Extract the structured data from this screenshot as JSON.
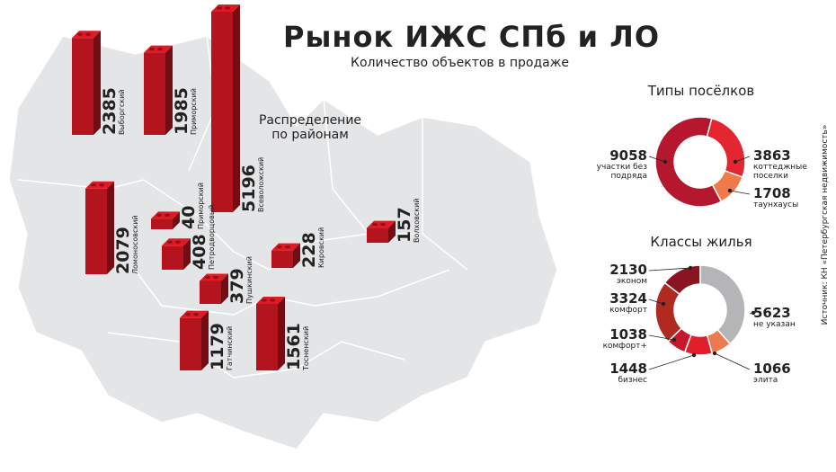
{
  "title": "Рынок ИЖС СПб и ЛО",
  "subtitle": "Количество объектов в продаже",
  "source": "Источник: КН «Петербургская недвижимость»",
  "chart_data": [
    {
      "type": "bar",
      "title": "Распределение по районам",
      "categories": [
        "Выборгский",
        "Приморский",
        "Всеволожский",
        "Ломоносовский",
        "Приморский",
        "Петродворцовый",
        "Пушкинский",
        "Кировский",
        "Волховский",
        "Гатчинский",
        "Тосненский"
      ],
      "values": [
        2385,
        1985,
        5196,
        2079,
        40,
        408,
        379,
        228,
        157,
        1179,
        1561
      ],
      "color": "#b3141d"
    },
    {
      "type": "donut",
      "title": "Типы посёлков",
      "categories": [
        "участки без подряда",
        "коттеджные поселки",
        "таунхаусы"
      ],
      "values": [
        9058,
        3863,
        1708
      ],
      "colors": [
        "#b5172e",
        "#e42630",
        "#f07a4a"
      ]
    },
    {
      "type": "donut",
      "title": "Классы жилья",
      "categories": [
        "эконом",
        "комфорт",
        "комфорт+",
        "бизнес",
        "элита",
        "не указан"
      ],
      "values": [
        2130,
        3324,
        1038,
        1448,
        1066,
        5623
      ],
      "colors": [
        "#8a1420",
        "#b02a22",
        "#c8172a",
        "#e21e2a",
        "#ee7a50",
        "#b5b5b8"
      ]
    }
  ]
}
